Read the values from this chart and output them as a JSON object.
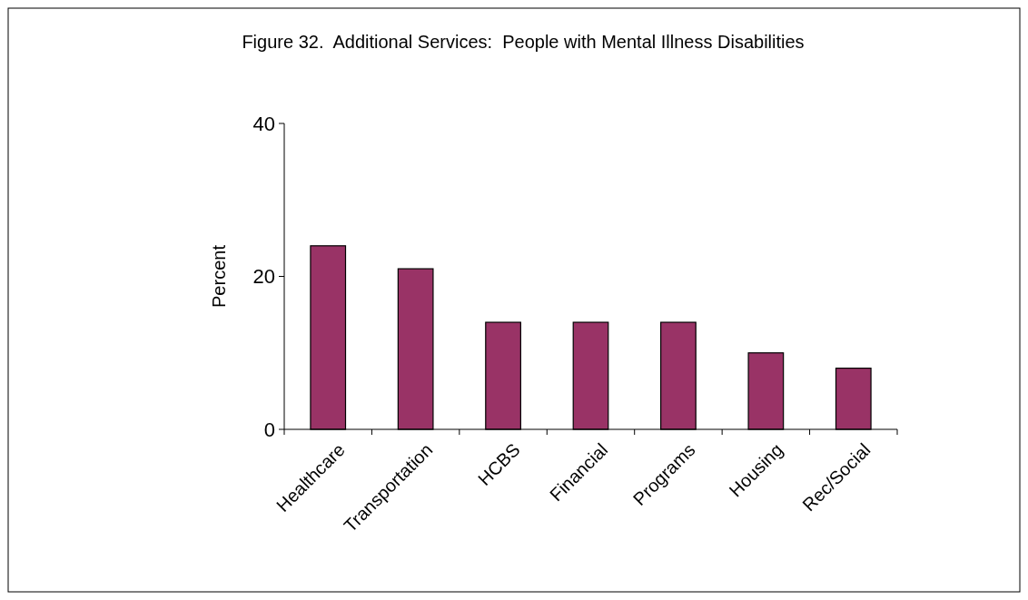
{
  "chart_data": {
    "type": "bar",
    "title": "Figure 32.  Additional Services:  People with Mental Illness Disabilities",
    "ylabel": "Percent",
    "categories": [
      "Healthcare",
      "Transportation",
      "HCBS",
      "Financial",
      "Programs",
      "Housing",
      "Rec/Social"
    ],
    "values": [
      24,
      21,
      14,
      14,
      14,
      10,
      8
    ],
    "color": "#993366",
    "ylim": [
      0,
      40
    ],
    "yticks": [
      0,
      20,
      40
    ],
    "grid": false
  }
}
